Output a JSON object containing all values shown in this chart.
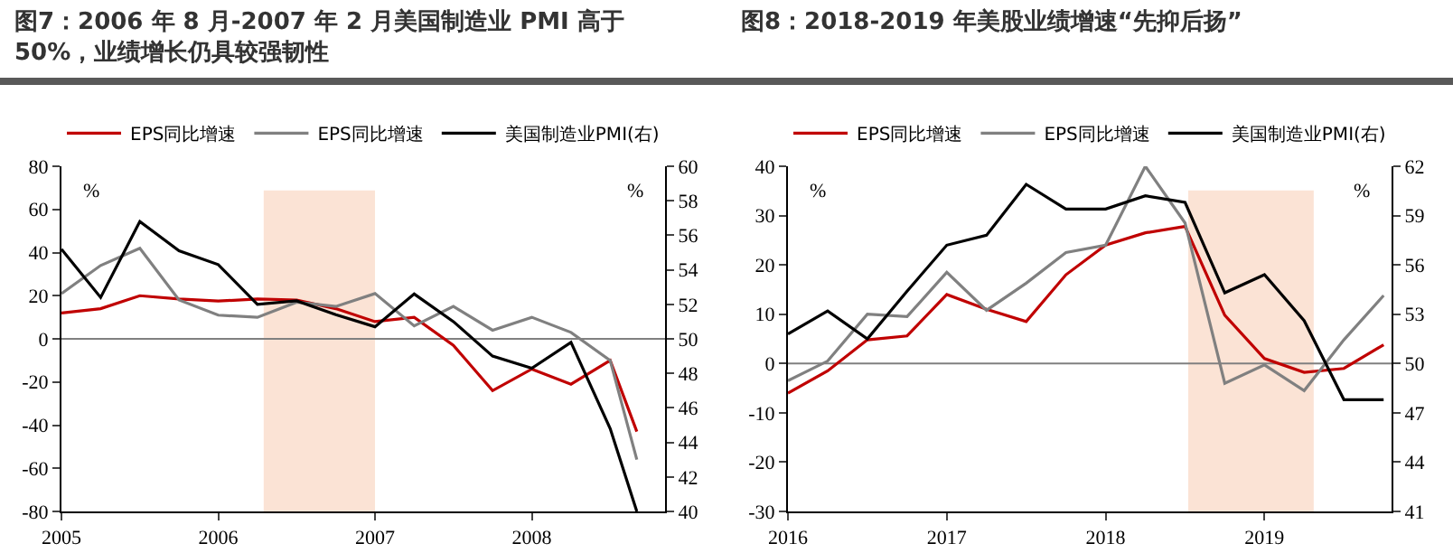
{
  "chart_data": [
    {
      "type": "line",
      "title": "图7：2006 年 8 月-2007 年 2 月美国制造业 PMI 高于 50%，业绩增长仍具较强韧性",
      "ylabel": "%",
      "y2label": "%",
      "x": [
        2005,
        2005.25,
        2005.5,
        2005.75,
        2006,
        2006.25,
        2006.5,
        2006.75,
        2007,
        2007.25,
        2007.5,
        2007.75,
        2008,
        2008.25,
        2008.5,
        2008.67
      ],
      "series": [
        {
          "name": "EPS同比增速",
          "color": "#c00000",
          "values": [
            12,
            14,
            20,
            18.5,
            17.5,
            18.5,
            18,
            14,
            8,
            10,
            -3,
            -24,
            -14,
            -21,
            -10,
            -43
          ]
        },
        {
          "name": "EPS同比增速",
          "color": "#808080",
          "values": [
            21,
            34,
            42,
            18,
            11,
            10,
            17,
            15,
            21,
            6,
            15,
            4,
            10,
            3,
            -10,
            -56
          ]
        },
        {
          "name": "美国制造业PMI(右)",
          "color": "#000000",
          "axis": "y2",
          "values": [
            55.2,
            52.4,
            56.8,
            55.1,
            54.3,
            52,
            52.2,
            51.4,
            50.7,
            52.6,
            51,
            49,
            48.3,
            49.8,
            44.8,
            40
          ]
        }
      ],
      "xlim": [
        2005,
        2008.85
      ],
      "xticks": [
        2005,
        2006,
        2007,
        2008
      ],
      "ylim": [
        -80,
        80
      ],
      "yticks": [
        -80,
        -60,
        -40,
        -20,
        0,
        20,
        40,
        60,
        80
      ],
      "y2lim": [
        40,
        60
      ],
      "y2ticks": [
        40,
        42,
        44,
        46,
        48,
        50,
        52,
        54,
        56,
        58,
        60
      ],
      "bands": [
        {
          "axis": "x",
          "from": 2006.29,
          "to": 2007,
          "color": "#fbe3d5"
        }
      ],
      "ref_lines": [
        {
          "axis": "y",
          "value": 0,
          "color": "#808080"
        }
      ],
      "grid": false,
      "legend": "top"
    },
    {
      "type": "line",
      "title": "图8：2018-2019 年美股业绩增速“先抑后扬”",
      "ylabel": "%",
      "y2label": "%",
      "x": [
        2016,
        2016.25,
        2016.5,
        2016.75,
        2017,
        2017.25,
        2017.5,
        2017.75,
        2018,
        2018.25,
        2018.5,
        2018.75,
        2019,
        2019.25,
        2019.5,
        2019.75
      ],
      "series": [
        {
          "name": "EPS同比增速",
          "color": "#c00000",
          "values": [
            -6,
            -1.5,
            4.8,
            5.6,
            14,
            11,
            8.5,
            18,
            24,
            26.5,
            27.8,
            9.8,
            1,
            -1.8,
            -1,
            3.8
          ]
        },
        {
          "name": "EPS同比增速",
          "color": "#808080",
          "values": [
            -3.5,
            0.5,
            10,
            9.5,
            18.5,
            10.8,
            16.3,
            22.5,
            24,
            40,
            28.5,
            -4,
            -0.3,
            -5.5,
            4.8,
            13.8
          ]
        },
        {
          "name": "美国制造业PMI(右)",
          "color": "#000000",
          "axis": "y2",
          "values": [
            51.8,
            53.2,
            51.5,
            54.4,
            57.2,
            57.8,
            60.9,
            59.4,
            59.4,
            60.2,
            59.8,
            54.3,
            55.4,
            52.6,
            47.8,
            47.8
          ]
        }
      ],
      "xlim": [
        2016,
        2019.8
      ],
      "xticks": [
        2016,
        2017,
        2018,
        2019
      ],
      "ylim": [
        -30,
        40
      ],
      "yticks": [
        -30,
        -20,
        -10,
        0,
        10,
        20,
        30,
        40
      ],
      "y2lim": [
        41,
        62
      ],
      "y2ticks": [
        41,
        44,
        47,
        50,
        53,
        56,
        59,
        62
      ],
      "bands": [
        {
          "axis": "x",
          "from": 2018.52,
          "to": 2019.31,
          "color": "#fbe3d5"
        }
      ],
      "ref_lines": [
        {
          "axis": "y",
          "value": 0,
          "color": "#808080"
        }
      ],
      "grid": false,
      "legend": "top"
    }
  ]
}
